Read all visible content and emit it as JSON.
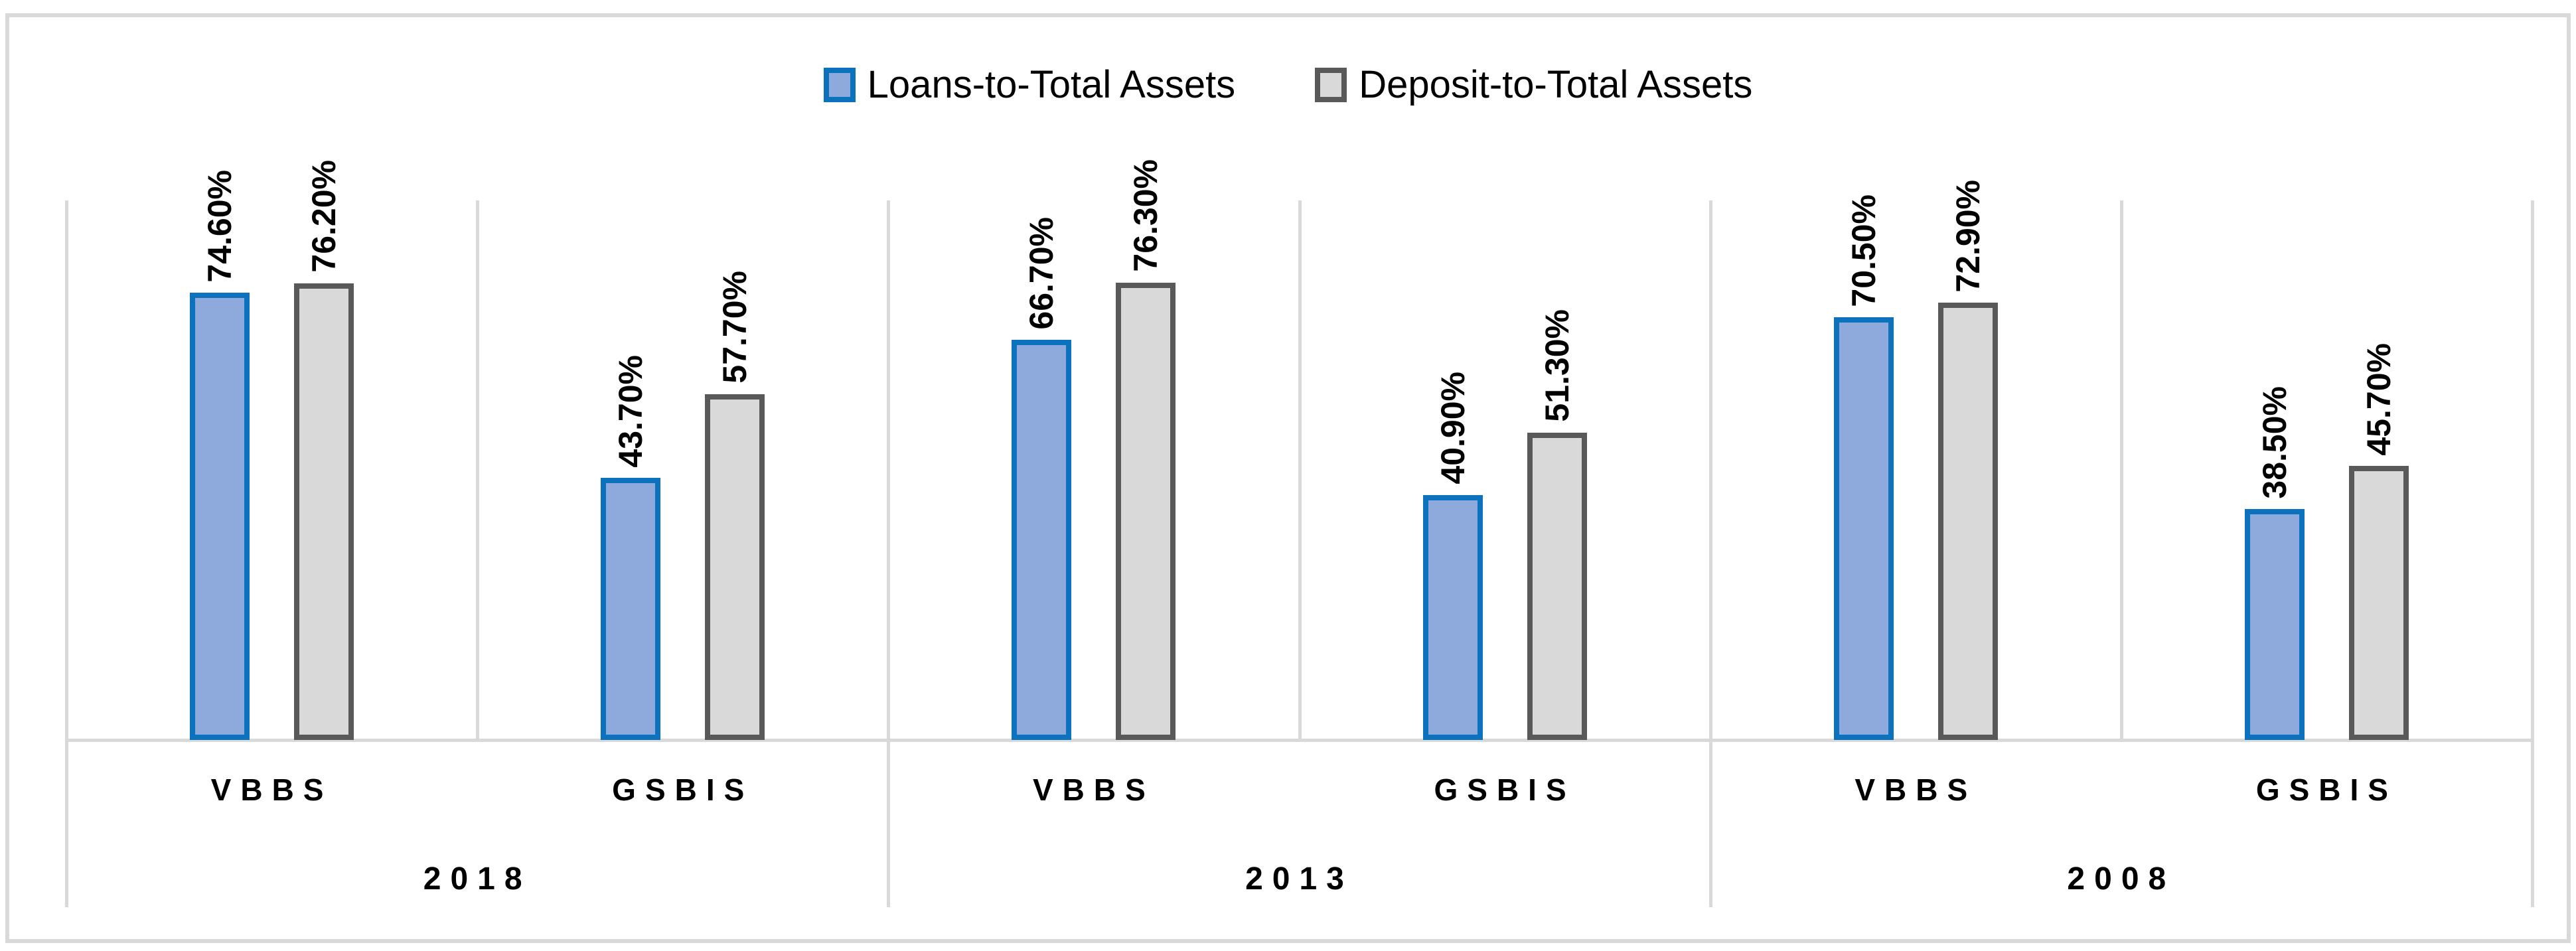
{
  "chart_data": {
    "type": "bar",
    "title": "",
    "legend_position": "top",
    "grid": "vertical-category-separators",
    "line_color": "#D9D9D9",
    "value_axis": {
      "min": 0,
      "max": 90,
      "visible": false
    },
    "series": [
      {
        "name": "Loans-to-Total Assets",
        "fill": "#8EA9DB",
        "border": "#0C72BE",
        "values": [
          74.6,
          43.7,
          66.7,
          40.9,
          70.5,
          38.5
        ]
      },
      {
        "name": "Deposit-to-Total Assets",
        "fill": "#D9D9D9",
        "border": "#595959",
        "values": [
          76.2,
          57.7,
          76.3,
          51.3,
          72.9,
          45.7
        ]
      }
    ],
    "categories": [
      "VBBS 2018",
      "GSBIS 2018",
      "VBBS 2013",
      "GSBIS 2013",
      "VBBS 2008",
      "GSBIS 2008"
    ],
    "year_groups": [
      {
        "year": "2018",
        "cells": [
          {
            "bank": "VBBS",
            "loans_value": 74.6,
            "loans_label": "74.60%",
            "deposit_value": 76.2,
            "deposit_label": "76.20%"
          },
          {
            "bank": "GSBIS",
            "loans_value": 43.7,
            "loans_label": "43.70%",
            "deposit_value": 57.7,
            "deposit_label": "57.70%"
          }
        ]
      },
      {
        "year": "2013",
        "cells": [
          {
            "bank": "VBBS",
            "loans_value": 66.7,
            "loans_label": "66.70%",
            "deposit_value": 76.3,
            "deposit_label": "76.30%"
          },
          {
            "bank": "GSBIS",
            "loans_value": 40.9,
            "loans_label": "40.90%",
            "deposit_value": 51.3,
            "deposit_label": "51.30%"
          }
        ]
      },
      {
        "year": "2008",
        "cells": [
          {
            "bank": "VBBS",
            "loans_value": 70.5,
            "loans_label": "70.50%",
            "deposit_value": 72.9,
            "deposit_label": "72.90%"
          },
          {
            "bank": "GSBIS",
            "loans_value": 38.5,
            "loans_label": "38.50%",
            "deposit_value": 45.7,
            "deposit_label": "45.70%"
          }
        ]
      }
    ]
  }
}
